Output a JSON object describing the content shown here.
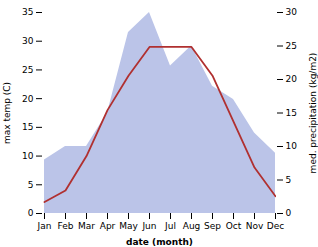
{
  "chart_data": {
    "type": "line",
    "categories": [
      "Jan",
      "Feb",
      "Mar",
      "Apr",
      "May",
      "Jun",
      "Jul",
      "Aug",
      "Sep",
      "Oct",
      "Nov",
      "Dec"
    ],
    "xlabel": "date (month)",
    "ylabel": "max temp (C)",
    "y2label": "med. precipitation (kg/m2)",
    "ylim": [
      0,
      35
    ],
    "yticks": [
      0,
      5,
      10,
      15,
      20,
      25,
      30,
      35
    ],
    "y2lim": [
      0,
      30
    ],
    "y2ticks": [
      0,
      5,
      10,
      15,
      20,
      25,
      30
    ],
    "grid": false,
    "series": [
      {
        "type": "area",
        "axis": "y2",
        "color": "#bbc4e8",
        "values": [
          8,
          10,
          10,
          15,
          27,
          30,
          22,
          25,
          19,
          17,
          12,
          9
        ]
      },
      {
        "type": "line",
        "color": "#b03030",
        "values": [
          2,
          4,
          10,
          18,
          24,
          29,
          29,
          29,
          24,
          16,
          8,
          3
        ]
      }
    ]
  }
}
